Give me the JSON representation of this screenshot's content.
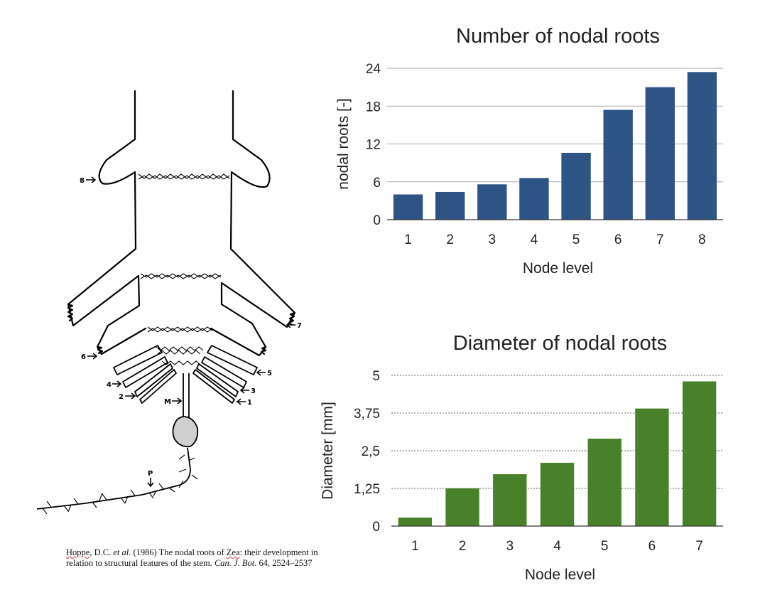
{
  "diagram": {
    "labels": {
      "n8": "8",
      "n7": "7",
      "n6": "6",
      "n5": "5",
      "n4": "4",
      "n3": "3",
      "n2": "2",
      "n1": "1",
      "mesocotyl": "M",
      "primary": "P"
    }
  },
  "citation": {
    "authors": "Hoppe",
    "after_authors": ", D.C. ",
    "etal": "et al",
    "title_a": ". (1986) The nodal roots of ",
    "genus": "Zea",
    "title_b": ": their development in relation to structural features of the stem. ",
    "journal": "Can. J. Bot",
    "volume": ". 64, 2524–2537"
  },
  "chart_data": [
    {
      "type": "bar",
      "title": "Number of nodal roots",
      "xlabel": "Node level",
      "ylabel": "nodal roots [-]",
      "categories": [
        "1",
        "2",
        "3",
        "4",
        "5",
        "6",
        "7",
        "8"
      ],
      "values": [
        4.0,
        4.4,
        5.6,
        6.6,
        10.6,
        17.4,
        21.0,
        23.4
      ],
      "ylim": [
        0,
        24
      ],
      "yticks": [
        "0",
        "6",
        "12",
        "18",
        "24"
      ],
      "ytick_values": [
        0,
        6,
        12,
        18,
        24
      ],
      "color": "#2e5486",
      "grid": "solid"
    },
    {
      "type": "bar",
      "title": "Diameter of nodal roots",
      "xlabel": "Node level",
      "ylabel": "Diameter [mm]",
      "categories": [
        "1",
        "2",
        "3",
        "4",
        "5",
        "6",
        "7"
      ],
      "values": [
        0.28,
        1.25,
        1.72,
        2.1,
        2.9,
        3.9,
        4.8
      ],
      "ylim": [
        0,
        5
      ],
      "yticks": [
        "0",
        "1,25",
        "2,5",
        "3,75",
        "5"
      ],
      "ytick_values": [
        0,
        1.25,
        2.5,
        3.75,
        5
      ],
      "color": "#48812a",
      "grid": "dotted"
    }
  ]
}
